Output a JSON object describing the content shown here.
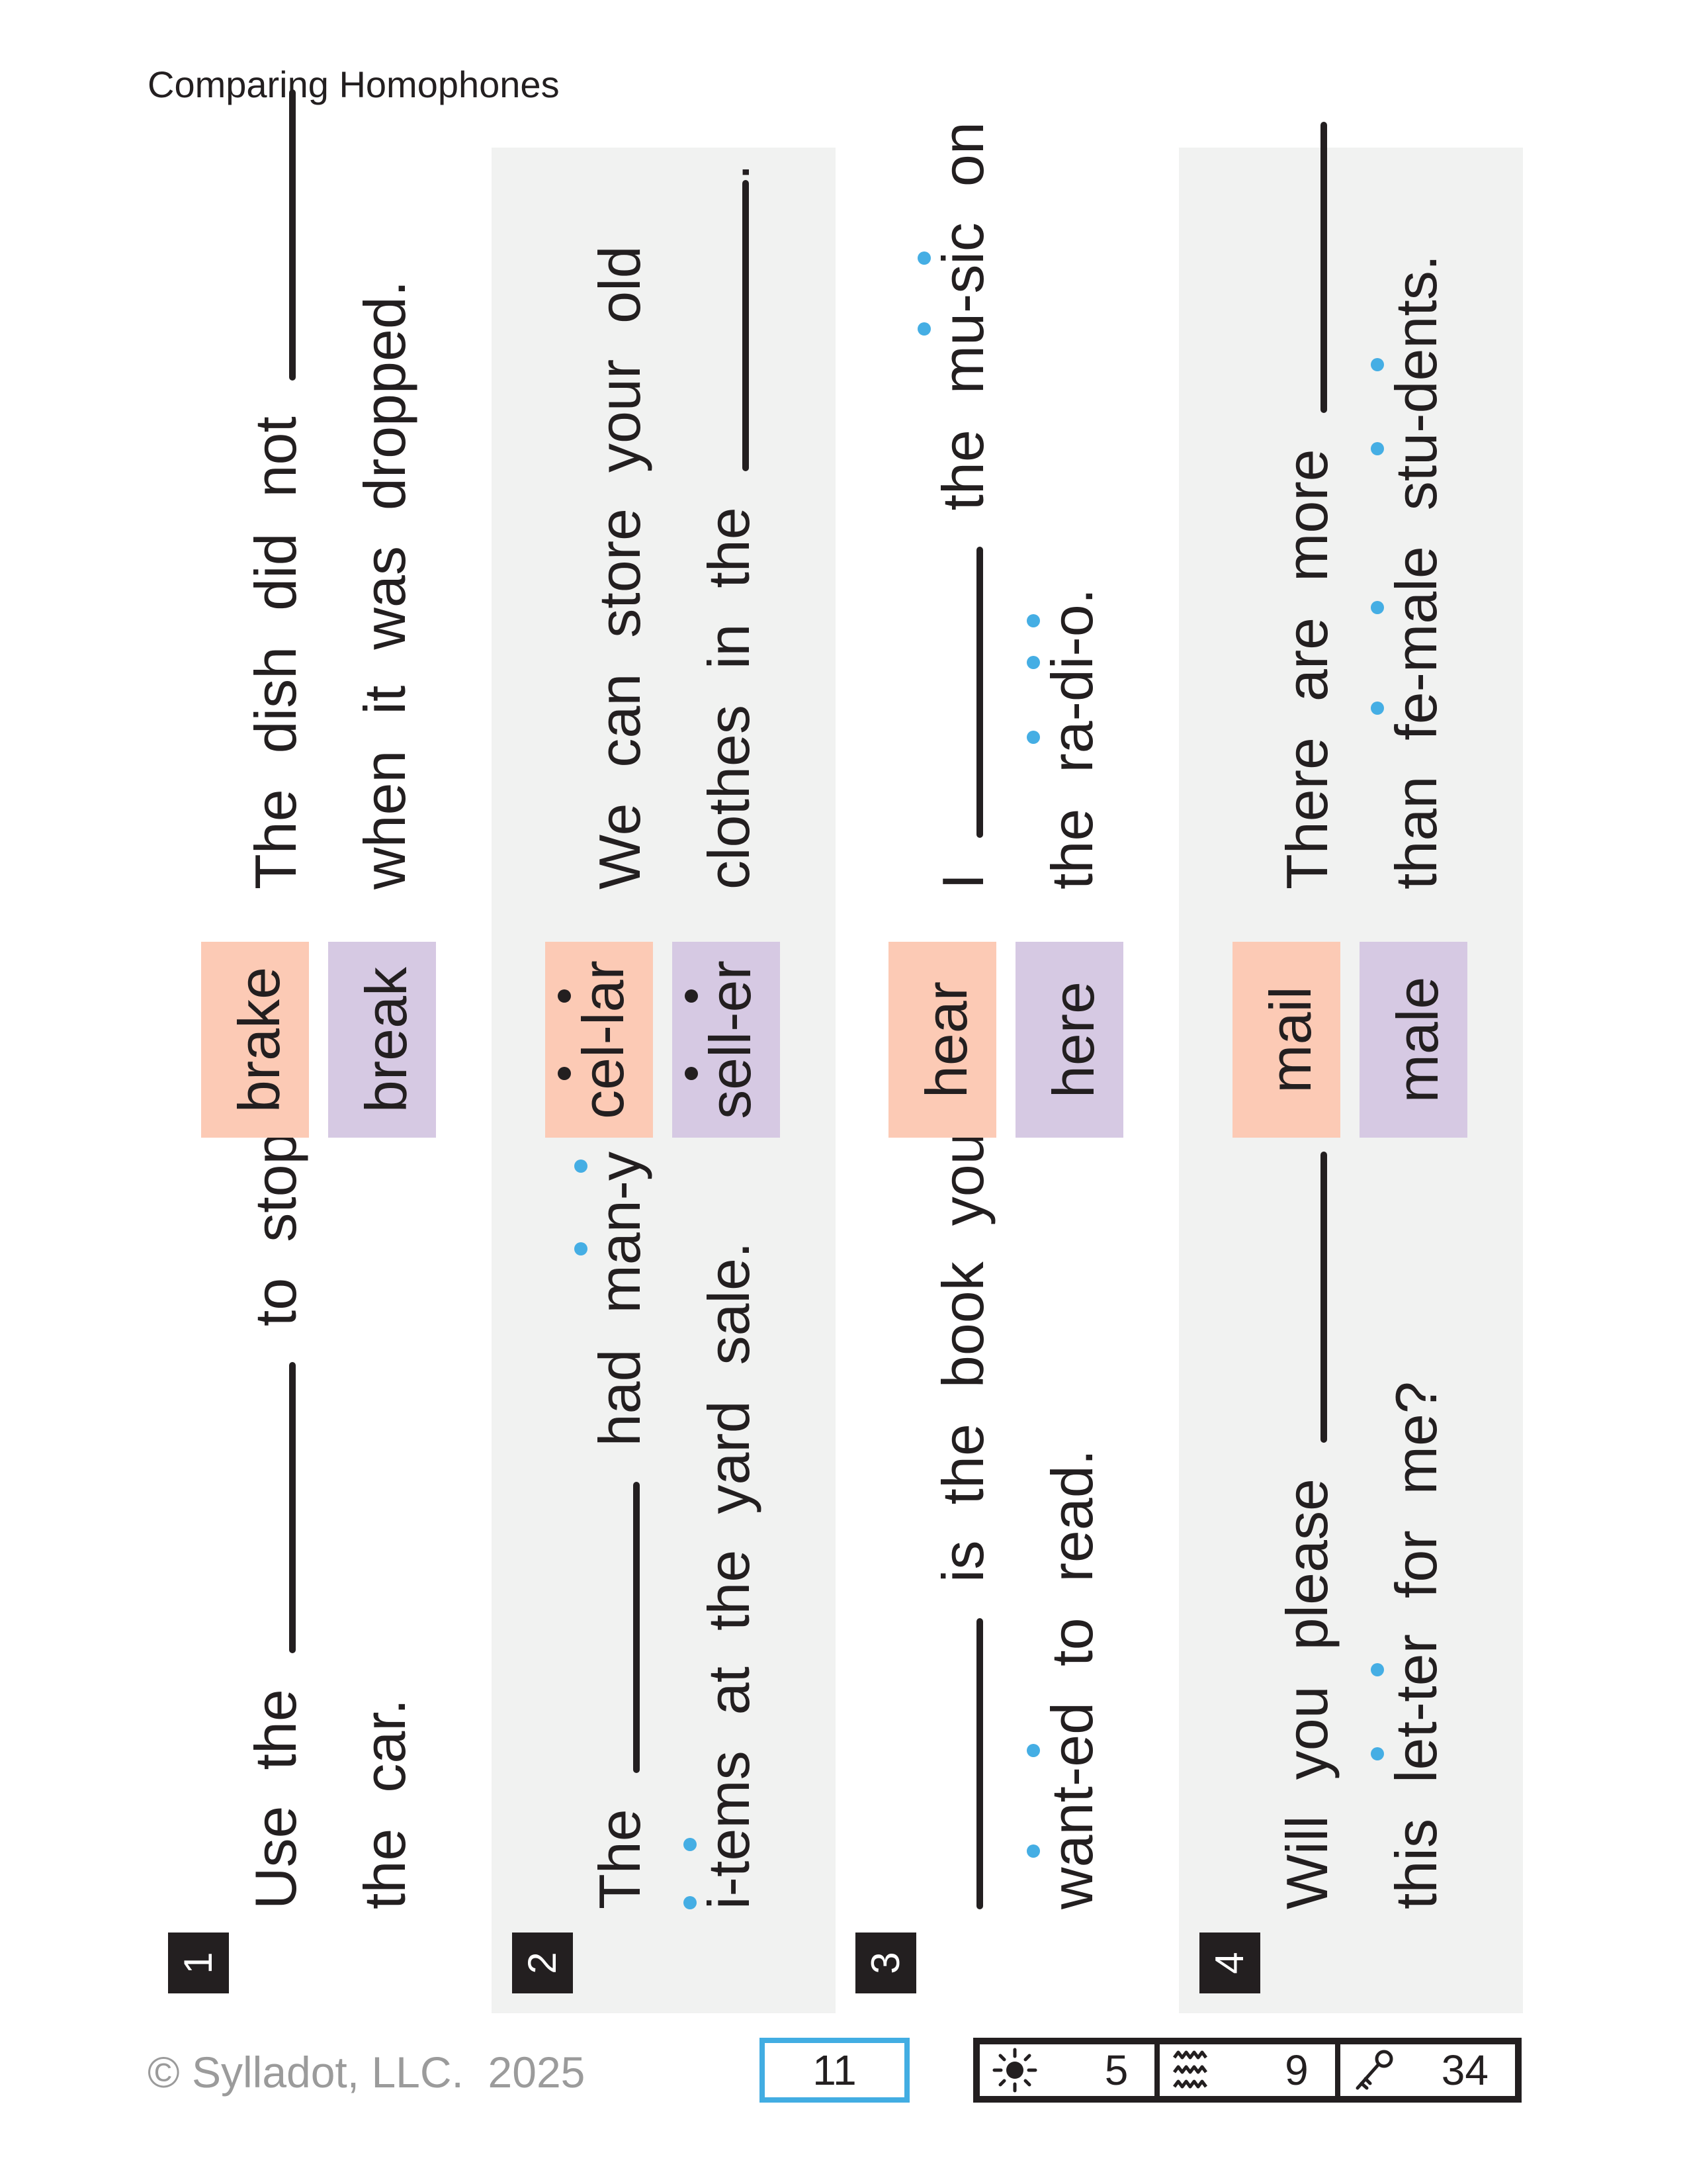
{
  "header": {
    "title": "Comparing Homophones"
  },
  "colors": {
    "panel_shade": "#f1f2f1",
    "word_a": "#fccab5",
    "word_b": "#d6c9e3",
    "dot_blue": "#45aee4",
    "ink": "#231f20",
    "page_border": "#42ade2"
  },
  "panels": [
    {
      "number": "1",
      "sentence_a": [
        [
          "Use",
          "the",
          "_",
          "to",
          "stop"
        ],
        [
          "the",
          "car."
        ]
      ],
      "words": [
        {
          "w": "brake"
        },
        {
          "w": "break"
        }
      ],
      "sentence_b": [
        [
          "The",
          "dish",
          "did",
          "not",
          "_"
        ],
        [
          "when",
          "it",
          "was",
          "dropped."
        ]
      ]
    },
    {
      "number": "2",
      "sentence_a": [
        [
          "The",
          "_",
          "had",
          {
            "w": "man-y",
            "dots": [
              1,
              4
            ]
          }
        ],
        [
          {
            "w": "i-tems",
            "dots": [
              0,
              3
            ]
          },
          "at",
          "the",
          "yard",
          "sale."
        ]
      ],
      "words": [
        {
          "w": "cel-lar",
          "dots": [
            1,
            5
          ]
        },
        {
          "w": "sell-er",
          "dots": [
            1,
            5
          ]
        }
      ],
      "sentence_b": [
        [
          "We",
          "can",
          "store",
          "your",
          "old"
        ],
        [
          "clothes",
          "in",
          "the",
          "_",
          "."
        ]
      ]
    },
    {
      "number": "3",
      "sentence_a": [
        [
          "_",
          "is",
          "the",
          "book",
          "you"
        ],
        [
          {
            "w": "want-ed",
            "dots": [
              1,
              5
            ]
          },
          "to",
          "read."
        ]
      ],
      "words": [
        {
          "w": "hear"
        },
        {
          "w": "here"
        }
      ],
      "sentence_b": [
        [
          "I",
          "_",
          "the",
          {
            "w": "mu-sic",
            "dots": [
              1,
              4
            ]
          },
          "on"
        ],
        [
          "the",
          {
            "w": "ra-di-o.",
            "dots": [
              1,
              4,
              6
            ]
          }
        ]
      ]
    },
    {
      "number": "4",
      "sentence_a": [
        [
          "Will",
          "you",
          "please",
          "_"
        ],
        [
          "this",
          {
            "w": "let-ter",
            "dots": [
              1,
              5
            ]
          },
          "for",
          "me?"
        ]
      ],
      "words": [
        {
          "w": "mail"
        },
        {
          "w": "male"
        }
      ],
      "sentence_b": [
        [
          "There",
          "are",
          "more",
          "_"
        ],
        [
          "than",
          {
            "w": "fe-male",
            "dots": [
              1,
              4
            ]
          },
          {
            "w": "stu-dents.",
            "dots": [
              2,
              5
            ]
          }
        ]
      ]
    }
  ],
  "footer": {
    "copyright": "© Sylladot, LLC.  2025",
    "page_number": "11",
    "stats": [
      {
        "icon": "sun-icon",
        "value": "5"
      },
      {
        "icon": "waves-icon",
        "value": "9"
      },
      {
        "icon": "key-icon",
        "value": "34"
      }
    ]
  }
}
